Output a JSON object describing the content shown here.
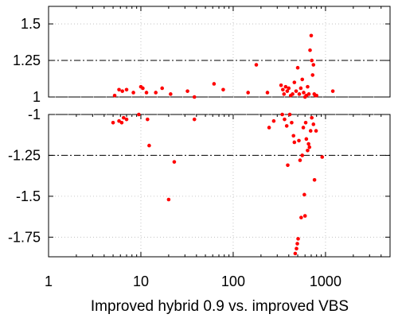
{
  "chart_data": {
    "type": "scatter",
    "title": "",
    "xlabel": "Improved hybrid 0.9 vs. improved VBS",
    "ylabel": "",
    "x_scale": "log",
    "xlim": [
      1,
      5000
    ],
    "x_ticks": [
      {
        "value": 1,
        "label": "1"
      },
      {
        "value": 10,
        "label": "10"
      },
      {
        "value": 100,
        "label": "100"
      },
      {
        "value": 1000,
        "label": "1000"
      }
    ],
    "grid": true,
    "point_color": "#ff0000",
    "panels": [
      {
        "name": "upper",
        "ylim": [
          1,
          1.62
        ],
        "y_ticks": [
          {
            "value": 1,
            "label": "1"
          },
          {
            "value": 1.25,
            "label": "1.25"
          },
          {
            "value": 1.5,
            "label": "1.5"
          }
        ],
        "reference_lines": [
          {
            "value": 1.0,
            "style": "dash-dot"
          },
          {
            "value": 1.25,
            "style": "dash-dot"
          }
        ],
        "points": [
          [
            5.2,
            1.01
          ],
          [
            5.8,
            1.05
          ],
          [
            6.3,
            1.04
          ],
          [
            7.0,
            1.05
          ],
          [
            8.3,
            1.03
          ],
          [
            10.0,
            1.07
          ],
          [
            10.5,
            1.06
          ],
          [
            11.5,
            1.03
          ],
          [
            14.5,
            1.03
          ],
          [
            17.0,
            1.06
          ],
          [
            21.0,
            1.02
          ],
          [
            32.0,
            1.04
          ],
          [
            38.0,
            1.0
          ],
          [
            62.0,
            1.09
          ],
          [
            78.0,
            1.05
          ],
          [
            145.0,
            1.03
          ],
          [
            178.0,
            1.22
          ],
          [
            235.0,
            1.03
          ],
          [
            330.0,
            1.08
          ],
          [
            345.0,
            1.05
          ],
          [
            355.0,
            1.02
          ],
          [
            370.0,
            1.07
          ],
          [
            385.0,
            1.04
          ],
          [
            400.0,
            1.06
          ],
          [
            420.0,
            1.01
          ],
          [
            440.0,
            1.02
          ],
          [
            460.0,
            1.1
          ],
          [
            480.0,
            1.04
          ],
          [
            500.0,
            1.2
          ],
          [
            520.0,
            1.02
          ],
          [
            540.0,
            1.06
          ],
          [
            560.0,
            1.12
          ],
          [
            580.0,
            1.03
          ],
          [
            600.0,
            1.0
          ],
          [
            620.0,
            1.01
          ],
          [
            640.0,
            1.07
          ],
          [
            660.0,
            1.02
          ],
          [
            680.0,
            1.32
          ],
          [
            700.0,
            1.42
          ],
          [
            710.0,
            1.25
          ],
          [
            725.0,
            1.15
          ],
          [
            740.0,
            1.22
          ],
          [
            755.0,
            1.02
          ],
          [
            775.0,
            1.01
          ],
          [
            800.0,
            1.01
          ],
          [
            1200.0,
            1.04
          ]
        ]
      },
      {
        "name": "lower",
        "ylim": [
          -1.87,
          -1
        ],
        "y_ticks": [
          {
            "value": -1,
            "label": "-1"
          },
          {
            "value": -1.25,
            "label": "-1.25"
          },
          {
            "value": -1.5,
            "label": "-1.5"
          },
          {
            "value": -1.75,
            "label": "-1.75"
          }
        ],
        "reference_lines": [
          {
            "value": -1.0,
            "style": "dash-dot"
          },
          {
            "value": -1.25,
            "style": "dash-dot"
          }
        ],
        "points": [
          [
            5.0,
            -1.05
          ],
          [
            5.8,
            -1.04
          ],
          [
            6.2,
            -1.05
          ],
          [
            6.5,
            -1.02
          ],
          [
            7.0,
            -1.03
          ],
          [
            9.5,
            -1.0
          ],
          [
            11.8,
            -1.03
          ],
          [
            12.3,
            -1.19
          ],
          [
            20.0,
            -1.52
          ],
          [
            23.0,
            -1.29
          ],
          [
            38.0,
            -1.03
          ],
          [
            245.0,
            -1.08
          ],
          [
            275.0,
            -1.04
          ],
          [
            340.0,
            -1.0
          ],
          [
            360.0,
            -1.03
          ],
          [
            380.0,
            -1.07
          ],
          [
            390.0,
            -1.31
          ],
          [
            410.0,
            -1.0
          ],
          [
            430.0,
            -1.05
          ],
          [
            450.0,
            -1.13
          ],
          [
            460.0,
            -1.17
          ],
          [
            470.0,
            -1.85
          ],
          [
            485.0,
            -1.82
          ],
          [
            495.0,
            -1.79
          ],
          [
            505.0,
            -1.76
          ],
          [
            515.0,
            -1.16
          ],
          [
            530.0,
            -1.28
          ],
          [
            545.0,
            -1.63
          ],
          [
            560.0,
            -1.25
          ],
          [
            575.0,
            -1.08
          ],
          [
            590.0,
            -1.49
          ],
          [
            600.0,
            -1.62
          ],
          [
            610.0,
            -1.05
          ],
          [
            620.0,
            -1.15
          ],
          [
            640.0,
            -1.22
          ],
          [
            655.0,
            -1.18
          ],
          [
            670.0,
            -1.2
          ],
          [
            690.0,
            -1.1
          ],
          [
            710.0,
            -1.02
          ],
          [
            740.0,
            -1.06
          ],
          [
            760.0,
            -1.4
          ],
          [
            790.0,
            -1.1
          ],
          [
            920.0,
            -1.26
          ]
        ]
      }
    ]
  }
}
